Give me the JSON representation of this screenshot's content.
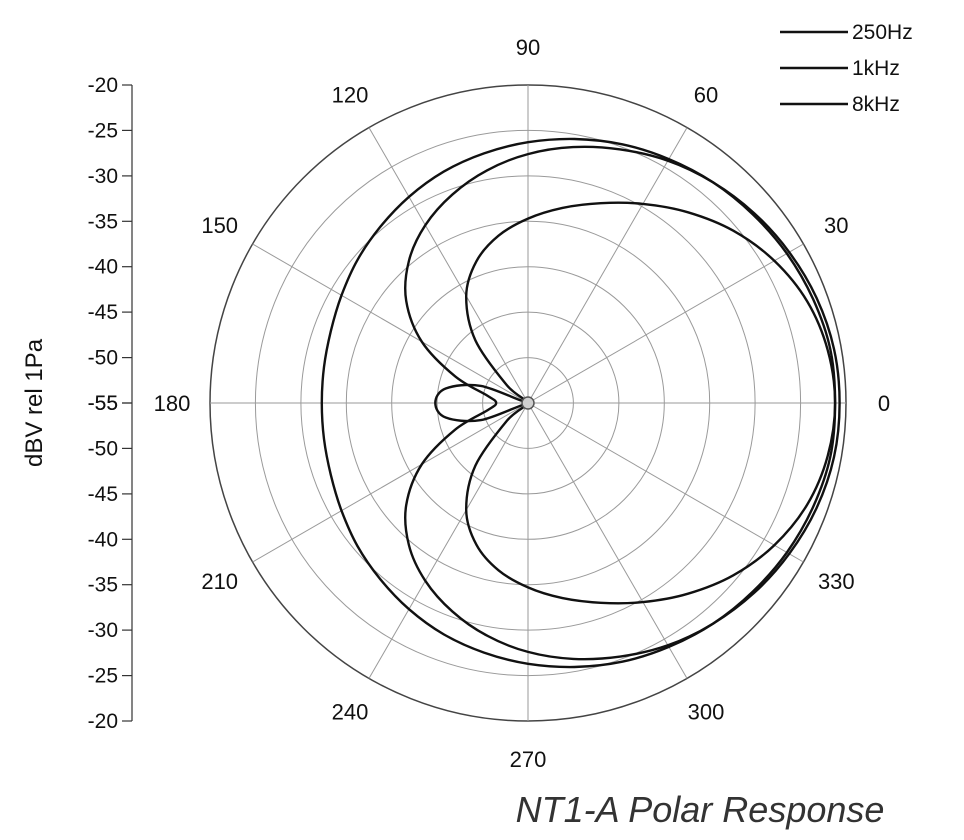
{
  "chart_data": {
    "type": "polar",
    "title": "NT1-A Polar Response",
    "ylabel": "dBV rel 1Pa",
    "r_axis": {
      "range": [
        -55,
        -20
      ],
      "gridlines_db": [
        -55,
        -50,
        -45,
        -40,
        -35,
        -30,
        -25,
        -20
      ],
      "tick_labels_upper": [
        "-20",
        "-25",
        "-30",
        "-35",
        "-40",
        "-45",
        "-50",
        "-55"
      ],
      "tick_labels_lower": [
        "-55",
        "-50",
        "-45",
        "-40",
        "-35",
        "-30",
        "-25",
        "-20"
      ]
    },
    "angle_axis": {
      "labels": [
        "0",
        "30",
        "60",
        "90",
        "120",
        "150",
        "180",
        "210",
        "240",
        "270",
        "300",
        "330"
      ],
      "spokes_deg": [
        0,
        30,
        60,
        90,
        120,
        150,
        180,
        210,
        240,
        270,
        300,
        330
      ]
    },
    "grid": true,
    "legend_position": "top-right",
    "series": [
      {
        "name": "250Hz",
        "angle_deg": [
          0,
          10,
          20,
          30,
          40,
          50,
          60,
          70,
          80,
          90,
          100,
          110,
          120,
          130,
          140,
          150,
          160,
          170,
          180,
          190,
          200,
          210,
          220,
          230,
          240,
          250,
          260,
          270,
          280,
          290,
          300,
          310,
          320,
          330,
          340,
          350
        ],
        "level_db": [
          -21.2,
          -21.2,
          -21.6,
          -22.1,
          -22.7,
          -23.3,
          -24.0,
          -24.7,
          -25.5,
          -26.3,
          -27.1,
          -27.9,
          -28.8,
          -29.7,
          -30.5,
          -31.3,
          -31.9,
          -32.2,
          -32.3,
          -32.2,
          -31.9,
          -31.3,
          -30.5,
          -29.7,
          -28.8,
          -27.9,
          -27.1,
          -26.3,
          -25.5,
          -24.7,
          -24.0,
          -23.3,
          -22.7,
          -22.1,
          -21.6,
          -21.2
        ]
      },
      {
        "name": "1kHz",
        "angle_deg": [
          0,
          10,
          20,
          30,
          40,
          50,
          60,
          70,
          80,
          90,
          100,
          110,
          120,
          130,
          140,
          150,
          160,
          170,
          180,
          190,
          200,
          210,
          220,
          230,
          240,
          250,
          260,
          270,
          280,
          290,
          300,
          310,
          320,
          330,
          340,
          350
        ],
        "level_db": [
          -20.7,
          -20.8,
          -21.2,
          -21.8,
          -22.5,
          -23.3,
          -24.2,
          -25.3,
          -26.4,
          -27.6,
          -29.0,
          -30.6,
          -32.4,
          -34.6,
          -37.5,
          -41.5,
          -46.5,
          -50.5,
          -51.5,
          -50.5,
          -46.5,
          -41.5,
          -37.5,
          -34.6,
          -32.4,
          -30.6,
          -29.0,
          -27.6,
          -26.4,
          -25.3,
          -24.2,
          -23.3,
          -22.5,
          -21.8,
          -21.2,
          -20.8
        ]
      },
      {
        "name": "8kHz",
        "angle_deg": [
          0,
          10,
          20,
          30,
          40,
          50,
          60,
          70,
          80,
          90,
          100,
          110,
          120,
          130,
          140,
          150,
          160,
          170,
          180,
          190,
          200,
          210,
          220,
          230,
          240,
          250,
          260,
          270,
          280,
          290,
          300,
          310,
          320,
          330,
          340,
          350
        ],
        "level_db": [
          -21.2,
          -21.5,
          -22.3,
          -23.7,
          -25.5,
          -27.6,
          -29.7,
          -31.6,
          -33.2,
          -34.7,
          -36.3,
          -38.4,
          -41.4,
          -46.0,
          -52.0,
          -54.8,
          -49.5,
          -45.8,
          -44.8,
          -45.8,
          -49.5,
          -54.8,
          -52.0,
          -46.0,
          -41.4,
          -38.4,
          -36.3,
          -34.7,
          -33.2,
          -31.6,
          -29.7,
          -27.6,
          -25.5,
          -23.7,
          -22.3,
          -21.5
        ]
      }
    ]
  }
}
